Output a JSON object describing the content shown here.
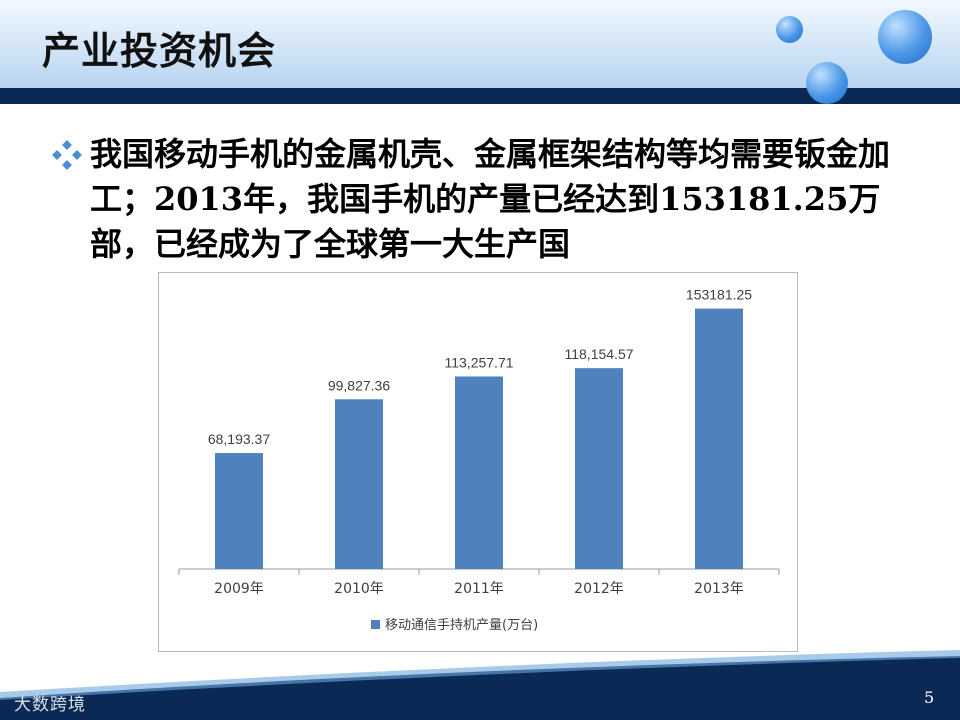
{
  "slide": {
    "title": "产业投资机会",
    "bullet_text": "我国移动手机的金属机壳、金属框架结构等均需要钣金加工；2013年，我国手机的产量已经达到153181.25万部，已经成为了全球第一大生产国",
    "page_number": "5",
    "watermark": "大数跨境"
  },
  "colors": {
    "bar": "#4f81bd",
    "header_bar": "#0a2a55",
    "bullet_icon": "#4a8fd0"
  },
  "icons": {
    "bullet": "diamond-bullet-icon",
    "legend": "legend-swatch-icon"
  },
  "chart_data": {
    "type": "bar",
    "categories": [
      "2009年",
      "2010年",
      "2011年",
      "2012年",
      "2013年"
    ],
    "series": [
      {
        "name": "移动通信手持机产量(万台)",
        "values": [
          68193.37,
          99827.36,
          113257.71,
          118154.57,
          153181.25
        ]
      }
    ],
    "data_labels": [
      "68,193.37",
      "99,827.36",
      "113,257.71",
      "118,154.57",
      "153181.25"
    ],
    "ylim": [
      0,
      160000
    ],
    "grid": false,
    "legend_position": "bottom"
  }
}
